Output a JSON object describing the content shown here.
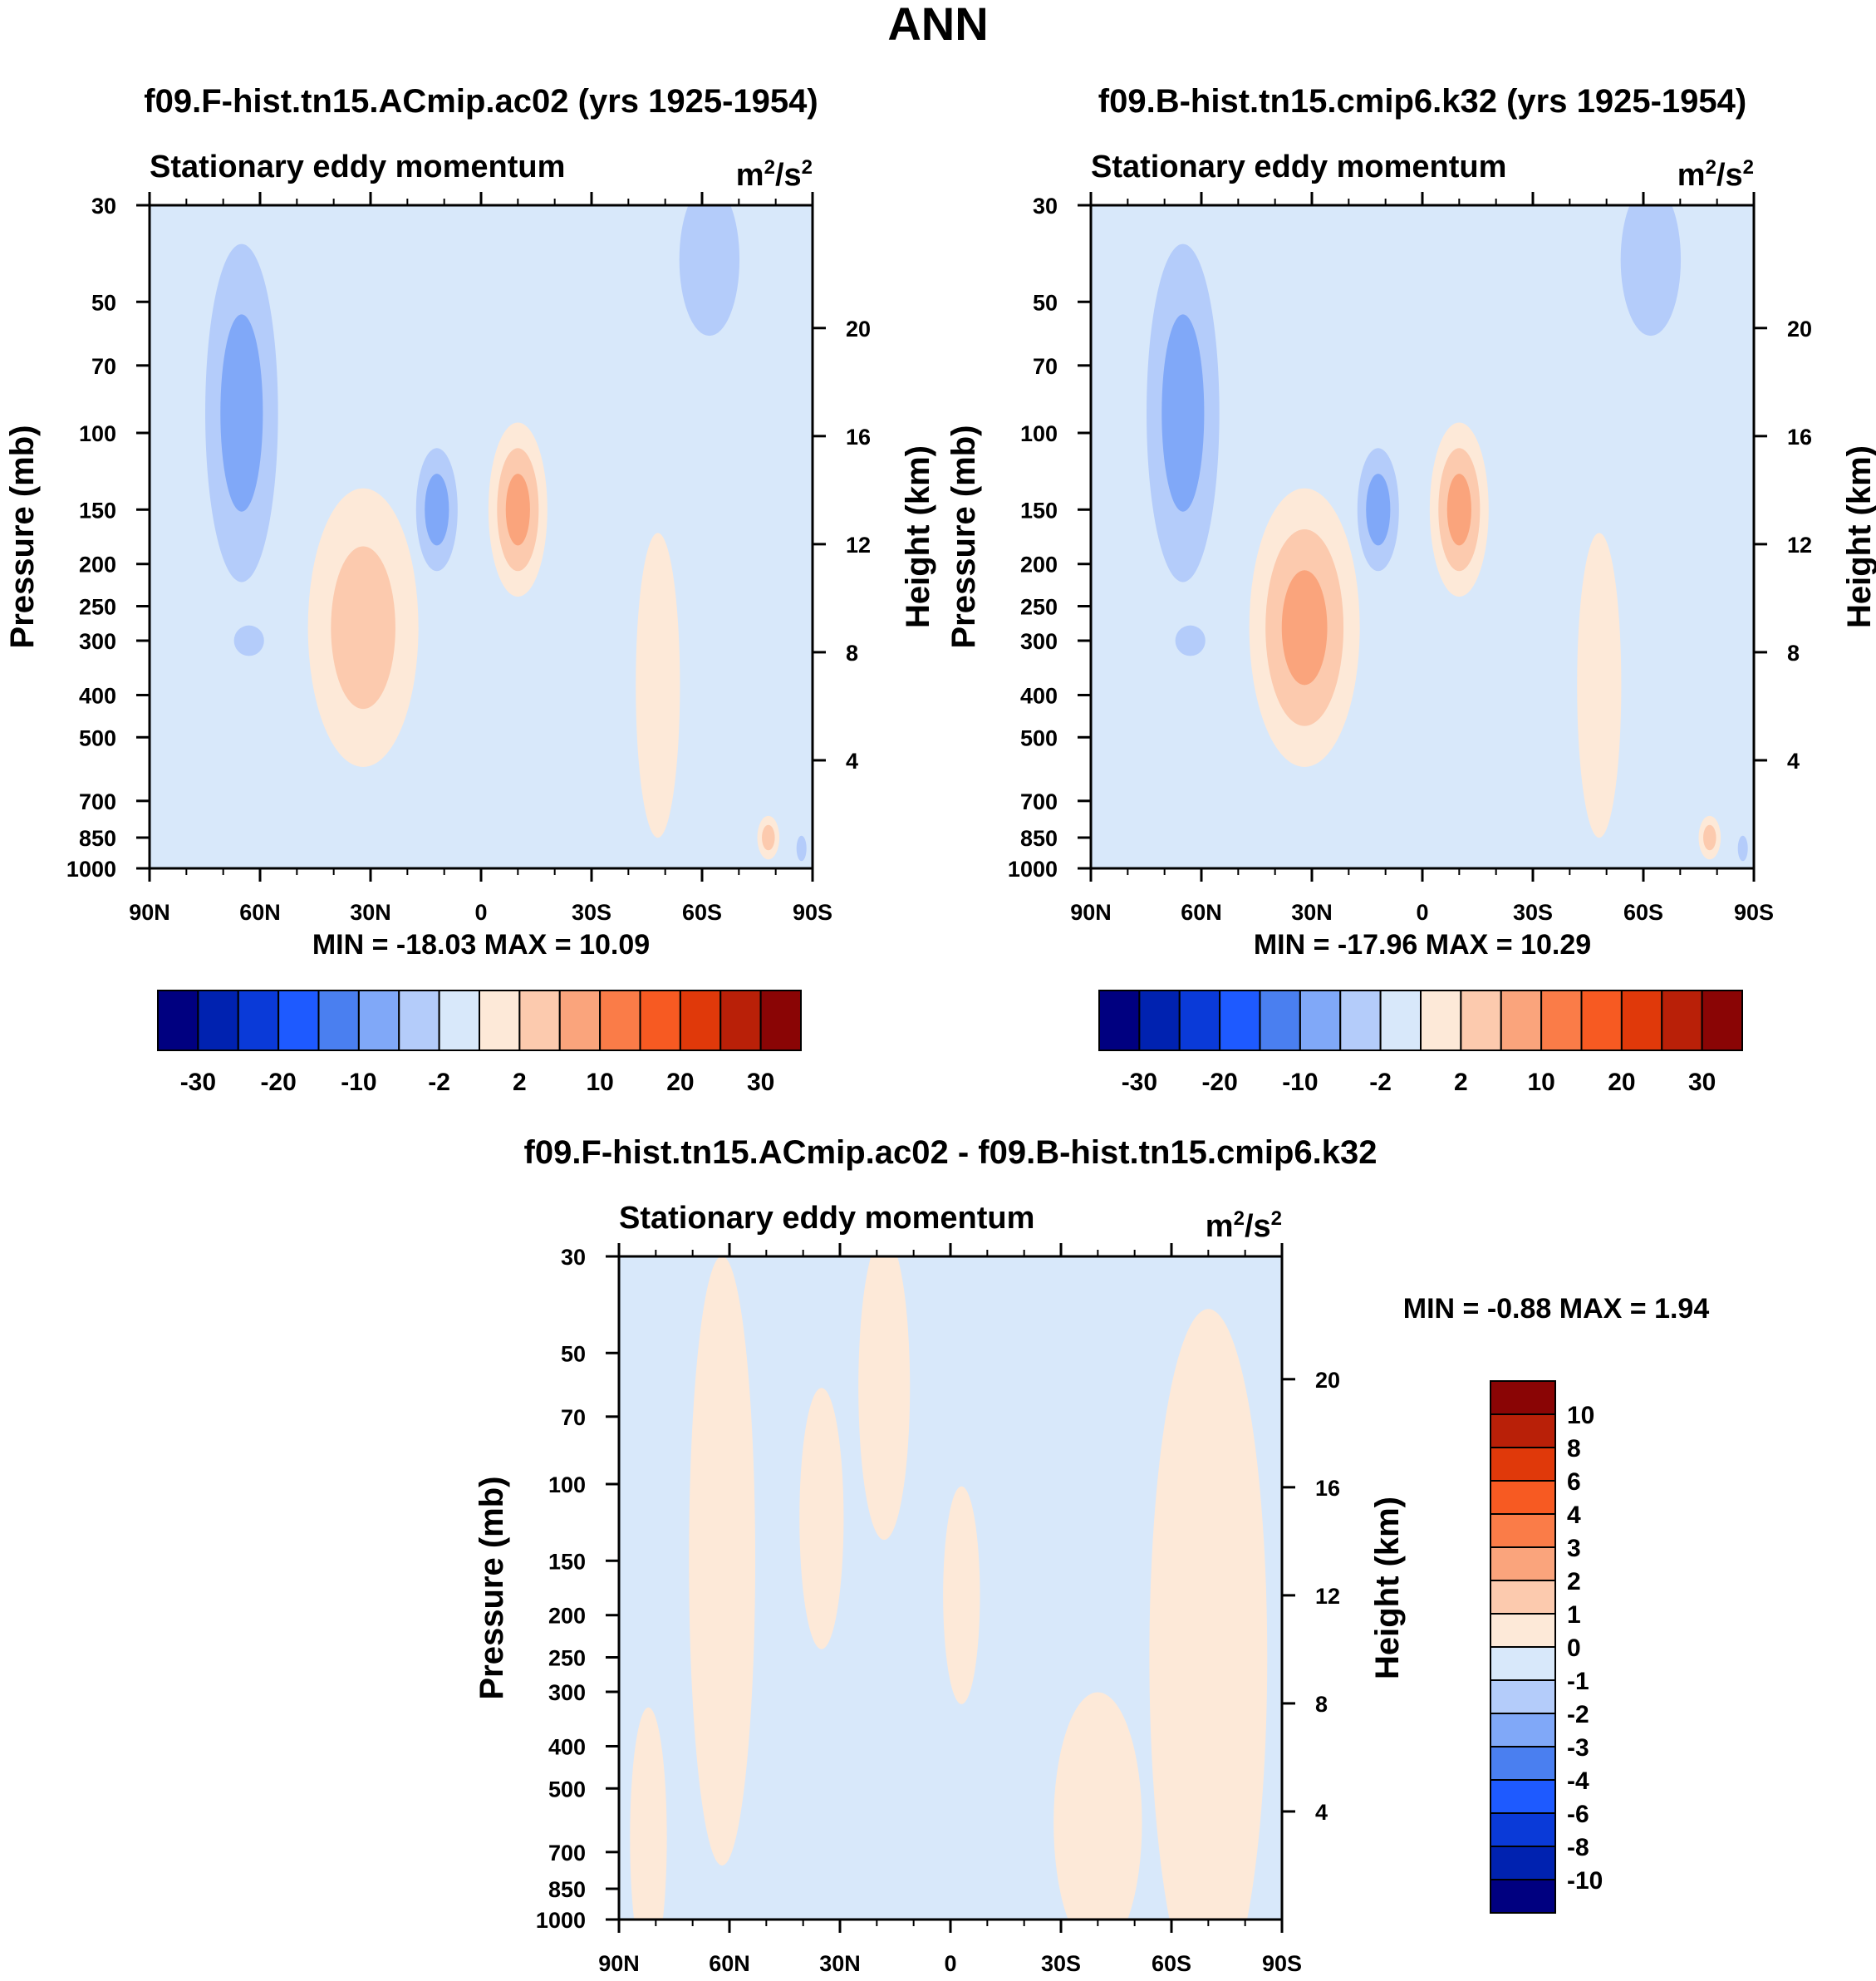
{
  "page_title": "ANN",
  "chart_data": [
    {
      "type": "heatmap",
      "id": "panel1",
      "title": "f09.F-hist.tn15.ACmip.ac02 (yrs 1925-1954)",
      "subtitle": "Stationary eddy momentum",
      "units_base": "m",
      "units_mid": "/s",
      "units_exp": "2",
      "ylabel": "Pressure (mb)",
      "y2label": "Height (km)",
      "x_ticks": [
        "90N",
        "60N",
        "30N",
        "0",
        "30S",
        "60S",
        "90S"
      ],
      "y_ticks": [
        "30",
        "50",
        "70",
        "100",
        "150",
        "200",
        "250",
        "300",
        "400",
        "500",
        "700",
        "850",
        "1000"
      ],
      "y2_ticks": [
        "20",
        "16",
        "12",
        "8",
        "4"
      ],
      "xlim": [
        90,
        -90
      ],
      "ylim": [
        1000,
        30
      ],
      "stats_label": "MIN = -18.03  MAX =  10.09",
      "min": -18.03,
      "max": 10.09,
      "features": [
        {
          "lat": 65,
          "p": 90,
          "dlat": 14,
          "dlogp": 0.55,
          "value": -8
        },
        {
          "lat": 63,
          "p": 300,
          "dlat": 7,
          "dlogp": 0.06,
          "value": -5
        },
        {
          "lat": 32,
          "p": 280,
          "dlat": 15,
          "dlogp": 0.32,
          "value": 5
        },
        {
          "lat": 12,
          "p": 150,
          "dlat": 8,
          "dlogp": 0.2,
          "value": -6
        },
        {
          "lat": -10,
          "p": 150,
          "dlat": 8,
          "dlogp": 0.2,
          "value": 6
        },
        {
          "lat": -62,
          "p": 40,
          "dlat": 14,
          "dlogp": 0.3,
          "value": -5
        },
        {
          "lat": -48,
          "p": 380,
          "dlat": 6,
          "dlogp": 0.35,
          "value": 1.5
        },
        {
          "lat": -78,
          "p": 850,
          "dlat": 3,
          "dlogp": 0.05,
          "value": 2.5
        },
        {
          "lat": -87,
          "p": 900,
          "dlat": 2,
          "dlogp": 0.05,
          "value": -3
        }
      ]
    },
    {
      "type": "heatmap",
      "id": "panel2",
      "title": "f09.B-hist.tn15.cmip6.k32 (yrs 1925-1954)",
      "subtitle": "Stationary eddy momentum",
      "units_base": "m",
      "units_mid": "/s",
      "units_exp": "2",
      "ylabel": "Pressure (mb)",
      "y2label": "Height (km)",
      "x_ticks": [
        "90N",
        "60N",
        "30N",
        "0",
        "30S",
        "60S",
        "90S"
      ],
      "y_ticks": [
        "30",
        "50",
        "70",
        "100",
        "150",
        "200",
        "250",
        "300",
        "400",
        "500",
        "700",
        "850",
        "1000"
      ],
      "y2_ticks": [
        "20",
        "16",
        "12",
        "8",
        "4"
      ],
      "xlim": [
        90,
        -90
      ],
      "ylim": [
        1000,
        30
      ],
      "stats_label": "MIN = -17.96  MAX =  10.29",
      "min": -17.96,
      "max": 10.29,
      "features": [
        {
          "lat": 65,
          "p": 90,
          "dlat": 14,
          "dlogp": 0.55,
          "value": -8
        },
        {
          "lat": 63,
          "p": 300,
          "dlat": 7,
          "dlogp": 0.06,
          "value": -5
        },
        {
          "lat": 32,
          "p": 280,
          "dlat": 15,
          "dlogp": 0.32,
          "value": 5.5
        },
        {
          "lat": 12,
          "p": 150,
          "dlat": 8,
          "dlogp": 0.2,
          "value": -6
        },
        {
          "lat": -10,
          "p": 150,
          "dlat": 8,
          "dlogp": 0.2,
          "value": 6
        },
        {
          "lat": -62,
          "p": 40,
          "dlat": 14,
          "dlogp": 0.3,
          "value": -5
        },
        {
          "lat": -48,
          "p": 380,
          "dlat": 6,
          "dlogp": 0.35,
          "value": 1.5
        },
        {
          "lat": -78,
          "p": 850,
          "dlat": 3,
          "dlogp": 0.05,
          "value": 2.5
        },
        {
          "lat": -87,
          "p": 900,
          "dlat": 2,
          "dlogp": 0.05,
          "value": -3
        }
      ]
    },
    {
      "type": "heatmap",
      "id": "panel3",
      "title": "f09.F-hist.tn15.ACmip.ac02 - f09.B-hist.tn15.cmip6.k32",
      "subtitle": "Stationary eddy momentum",
      "units_base": "m",
      "units_mid": "/s",
      "units_exp": "2",
      "ylabel": "Pressure (mb)",
      "y2label": "Height (km)",
      "x_ticks": [
        "90N",
        "60N",
        "30N",
        "0",
        "30S",
        "60S",
        "90S"
      ],
      "y_ticks": [
        "30",
        "50",
        "70",
        "100",
        "150",
        "200",
        "250",
        "300",
        "400",
        "500",
        "700",
        "850",
        "1000"
      ],
      "y2_ticks": [
        "20",
        "16",
        "12",
        "8",
        "4"
      ],
      "xlim": [
        90,
        -90
      ],
      "ylim": [
        1000,
        30
      ],
      "stats_label": "MIN =  -0.88  MAX =   1.94",
      "min": -0.88,
      "max": 1.94,
      "features": [
        {
          "lat": 62,
          "p": 150,
          "dlat": 9,
          "dlogp": 0.7,
          "value": 0.6
        },
        {
          "lat": 35,
          "p": 120,
          "dlat": 6,
          "dlogp": 0.3,
          "value": 0.5
        },
        {
          "lat": 18,
          "p": 60,
          "dlat": 7,
          "dlogp": 0.35,
          "value": 0.5
        },
        {
          "lat": -3,
          "p": 180,
          "dlat": 5,
          "dlogp": 0.25,
          "value": 0.5
        },
        {
          "lat": -70,
          "p": 250,
          "dlat": 16,
          "dlogp": 0.8,
          "value": 0.6
        },
        {
          "lat": -40,
          "p": 600,
          "dlat": 12,
          "dlogp": 0.3,
          "value": 0.5
        },
        {
          "lat": 82,
          "p": 650,
          "dlat": 5,
          "dlogp": 0.3,
          "value": 0.5
        }
      ]
    }
  ],
  "colorbar_main": {
    "colors": [
      "#000080",
      "#0022b0",
      "#0a3ad8",
      "#1e5aff",
      "#4a7ff0",
      "#80a8f8",
      "#b4ccfa",
      "#d8e8fa",
      "#fde9d8",
      "#fccaae",
      "#faa47c",
      "#fa7c48",
      "#f75a22",
      "#e0390a",
      "#b92008",
      "#8a0505"
    ],
    "levels": [
      -30,
      -25,
      -20,
      -15,
      -10,
      -5,
      -2,
      0,
      2,
      5,
      10,
      15,
      20,
      25,
      30
    ],
    "labels": [
      "-30",
      "-20",
      "-10",
      "-2",
      "2",
      "10",
      "20",
      "30"
    ]
  },
  "colorbar_diff": {
    "colors": [
      "#000080",
      "#0022b0",
      "#0a3ad8",
      "#1e5aff",
      "#4a7ff0",
      "#80a8f8",
      "#b4ccfa",
      "#d8e8fa",
      "#fde9d8",
      "#fccaae",
      "#faa47c",
      "#fa7c48",
      "#f75a22",
      "#e0390a",
      "#b92008",
      "#8a0505"
    ],
    "levels": [
      -10,
      -8,
      -6,
      -4,
      -3,
      -2,
      -1,
      0,
      1,
      2,
      3,
      4,
      6,
      8,
      10
    ],
    "labels": [
      "10",
      "8",
      "6",
      "4",
      "3",
      "2",
      "1",
      "0",
      "-1",
      "-2",
      "-3",
      "-4",
      "-6",
      "-8",
      "-10"
    ]
  }
}
